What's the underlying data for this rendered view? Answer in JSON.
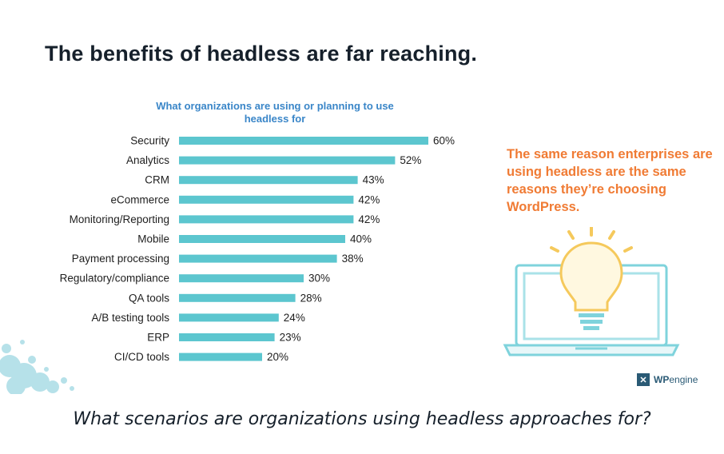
{
  "heading": "The benefits of headless are far reaching.",
  "chart_data": {
    "type": "bar",
    "orientation": "horizontal",
    "title": "What organizations are using or planning to use headless for",
    "categories": [
      "Security",
      "Analytics",
      "CRM",
      "eCommerce",
      "Monitoring/Reporting",
      "Mobile",
      "Payment processing",
      "Regulatory/compliance",
      "QA tools",
      "A/B testing tools",
      "ERP",
      "CI/CD tools"
    ],
    "values": [
      60,
      52,
      43,
      42,
      42,
      40,
      38,
      30,
      28,
      24,
      23,
      20
    ],
    "value_labels": [
      "60%",
      "52%",
      "43%",
      "42%",
      "42%",
      "40%",
      "38%",
      "30%",
      "28%",
      "24%",
      "23%",
      "20%"
    ],
    "unit": "%",
    "xlim": [
      0,
      60
    ],
    "grid": false,
    "bar_color": "#5cc6cf"
  },
  "callout": "The same reason enterprises are using headless are the same reasons they’re choosing WordPress.",
  "logo": {
    "mark": "✕",
    "word_bold": "WP",
    "word": "engine"
  },
  "caption": "What scenarios are organizations using headless approaches for?",
  "colors": {
    "accent_orange": "#f07b34",
    "accent_blue": "#3a86c8",
    "title": "#16202b"
  },
  "icons": [
    "lightbulb-icon",
    "laptop-icon",
    "paint-splash-icon",
    "wpengine-logo-icon"
  ]
}
